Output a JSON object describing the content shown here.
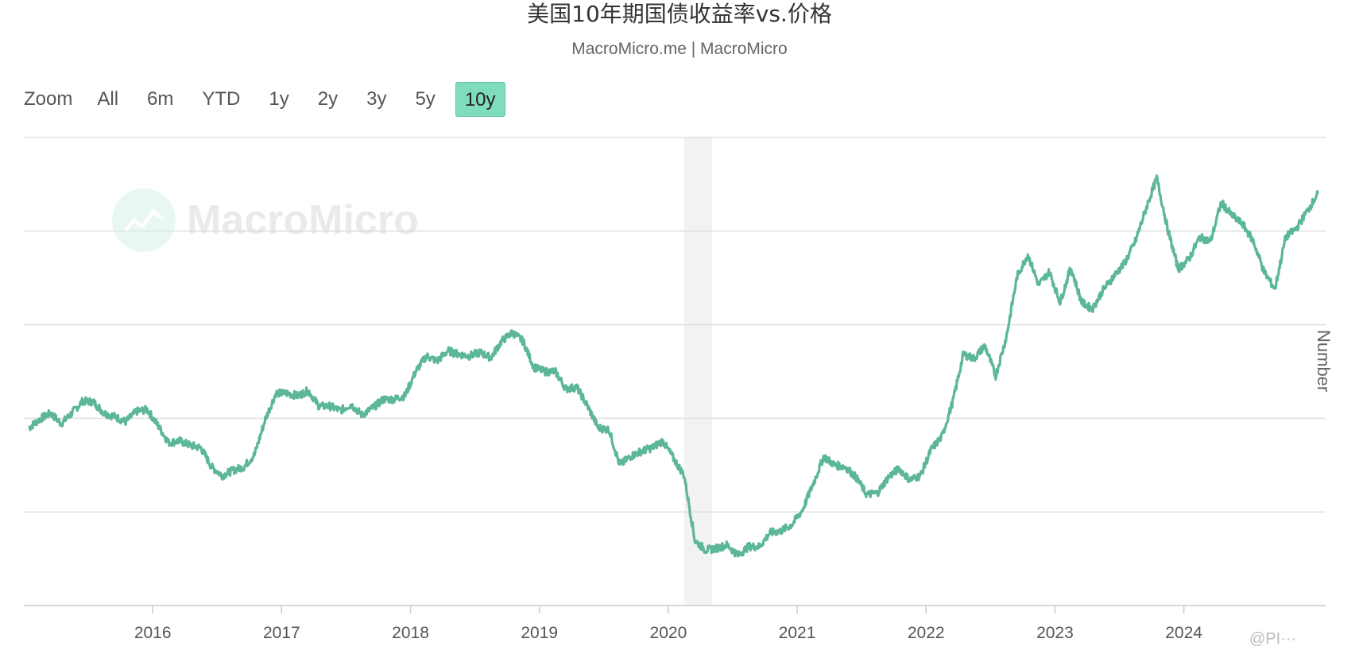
{
  "header": {
    "title": "美国10年期国债收益率vs.价格",
    "subtitle": "MacroMicro.me | MacroMicro"
  },
  "range_selector": {
    "label": "Zoom",
    "buttons": [
      {
        "label": "All",
        "active": false
      },
      {
        "label": "6m",
        "active": false
      },
      {
        "label": "YTD",
        "active": false
      },
      {
        "label": "1y",
        "active": false
      },
      {
        "label": "2y",
        "active": false
      },
      {
        "label": "3y",
        "active": false
      },
      {
        "label": "5y",
        "active": false
      },
      {
        "label": "10y",
        "active": true
      }
    ]
  },
  "watermark": {
    "text": "MacroMicro"
  },
  "credit": "@PI···",
  "colors": {
    "series": "#5bb796",
    "recession": "#f2f2f2",
    "grid": "#e0e0e0",
    "active_button": "#7fdcbe"
  },
  "chart_data": {
    "type": "line",
    "title": "美国10年期国债收益率vs.价格",
    "xlabel": "",
    "ylabel": "Number",
    "x_ticks": [
      "2016",
      "2017",
      "2018",
      "2019",
      "2020",
      "2021",
      "2022",
      "2023",
      "2024"
    ],
    "y_tick_labels_shown": false,
    "gridlines": "horizontal",
    "recession_band": {
      "start": "2020-02",
      "end": "2020-04"
    },
    "series": [
      {
        "name": "",
        "points": [
          [
            "2015-01",
            2.05
          ],
          [
            "2015-02",
            2.15
          ],
          [
            "2015-03",
            2.22
          ],
          [
            "2015-04",
            2.1
          ],
          [
            "2015-05",
            2.22
          ],
          [
            "2015-06",
            2.36
          ],
          [
            "2015-07",
            2.35
          ],
          [
            "2015-08",
            2.22
          ],
          [
            "2015-09",
            2.18
          ],
          [
            "2015-10",
            2.12
          ],
          [
            "2015-11",
            2.24
          ],
          [
            "2015-12",
            2.26
          ],
          [
            "2016-01",
            2.08
          ],
          [
            "2016-02",
            1.88
          ],
          [
            "2016-03",
            1.9
          ],
          [
            "2016-04",
            1.85
          ],
          [
            "2016-05",
            1.82
          ],
          [
            "2016-06",
            1.6
          ],
          [
            "2016-07",
            1.5
          ],
          [
            "2016-08",
            1.56
          ],
          [
            "2016-09",
            1.6
          ],
          [
            "2016-10",
            1.74
          ],
          [
            "2016-11",
            2.15
          ],
          [
            "2016-12",
            2.45
          ],
          [
            "2017-01",
            2.45
          ],
          [
            "2017-02",
            2.42
          ],
          [
            "2017-03",
            2.48
          ],
          [
            "2017-04",
            2.3
          ],
          [
            "2017-05",
            2.3
          ],
          [
            "2017-06",
            2.25
          ],
          [
            "2017-07",
            2.32
          ],
          [
            "2017-08",
            2.2
          ],
          [
            "2017-09",
            2.28
          ],
          [
            "2017-10",
            2.38
          ],
          [
            "2017-11",
            2.38
          ],
          [
            "2017-12",
            2.42
          ],
          [
            "2018-01",
            2.7
          ],
          [
            "2018-02",
            2.88
          ],
          [
            "2018-03",
            2.82
          ],
          [
            "2018-04",
            2.94
          ],
          [
            "2018-05",
            2.9
          ],
          [
            "2018-06",
            2.88
          ],
          [
            "2018-07",
            2.92
          ],
          [
            "2018-08",
            2.86
          ],
          [
            "2018-09",
            3.05
          ],
          [
            "2018-10",
            3.15
          ],
          [
            "2018-11",
            3.05
          ],
          [
            "2018-12",
            2.75
          ],
          [
            "2019-01",
            2.7
          ],
          [
            "2019-02",
            2.7
          ],
          [
            "2019-03",
            2.5
          ],
          [
            "2019-04",
            2.52
          ],
          [
            "2019-05",
            2.3
          ],
          [
            "2019-06",
            2.05
          ],
          [
            "2019-07",
            2.03
          ],
          [
            "2019-08",
            1.62
          ],
          [
            "2019-09",
            1.72
          ],
          [
            "2019-10",
            1.78
          ],
          [
            "2019-11",
            1.82
          ],
          [
            "2019-12",
            1.9
          ],
          [
            "2020-01",
            1.7
          ],
          [
            "2020-02",
            1.5
          ],
          [
            "2020-03",
            0.75
          ],
          [
            "2020-04",
            0.64
          ],
          [
            "2020-05",
            0.66
          ],
          [
            "2020-06",
            0.7
          ],
          [
            "2020-07",
            0.58
          ],
          [
            "2020-08",
            0.68
          ],
          [
            "2020-09",
            0.68
          ],
          [
            "2020-10",
            0.84
          ],
          [
            "2020-11",
            0.86
          ],
          [
            "2020-12",
            0.93
          ],
          [
            "2021-01",
            1.1
          ],
          [
            "2021-02",
            1.4
          ],
          [
            "2021-03",
            1.72
          ],
          [
            "2021-04",
            1.62
          ],
          [
            "2021-05",
            1.6
          ],
          [
            "2021-06",
            1.48
          ],
          [
            "2021-07",
            1.28
          ],
          [
            "2021-08",
            1.3
          ],
          [
            "2021-09",
            1.48
          ],
          [
            "2021-10",
            1.58
          ],
          [
            "2021-11",
            1.45
          ],
          [
            "2021-12",
            1.5
          ],
          [
            "2022-01",
            1.8
          ],
          [
            "2022-02",
            1.95
          ],
          [
            "2022-03",
            2.35
          ],
          [
            "2022-04",
            2.9
          ],
          [
            "2022-05",
            2.85
          ],
          [
            "2022-06",
            3.0
          ],
          [
            "2022-07",
            2.65
          ],
          [
            "2022-08",
            3.1
          ],
          [
            "2022-09",
            3.8
          ],
          [
            "2022-10",
            4.05
          ],
          [
            "2022-11",
            3.7
          ],
          [
            "2022-12",
            3.85
          ],
          [
            "2023-01",
            3.5
          ],
          [
            "2023-02",
            3.9
          ],
          [
            "2023-03",
            3.5
          ],
          [
            "2023-04",
            3.42
          ],
          [
            "2023-05",
            3.64
          ],
          [
            "2023-06",
            3.8
          ],
          [
            "2023-07",
            3.95
          ],
          [
            "2023-08",
            4.2
          ],
          [
            "2023-09",
            4.58
          ],
          [
            "2023-10",
            4.93
          ],
          [
            "2023-11",
            4.35
          ],
          [
            "2023-12",
            3.88
          ],
          [
            "2024-01",
            4.0
          ],
          [
            "2024-02",
            4.25
          ],
          [
            "2024-03",
            4.2
          ],
          [
            "2024-04",
            4.65
          ],
          [
            "2024-05",
            4.5
          ],
          [
            "2024-06",
            4.4
          ],
          [
            "2024-07",
            4.2
          ],
          [
            "2024-08",
            3.85
          ],
          [
            "2024-09",
            3.65
          ],
          [
            "2024-10",
            4.25
          ],
          [
            "2024-11",
            4.35
          ],
          [
            "2024-12",
            4.55
          ],
          [
            "2025-01",
            4.75
          ]
        ]
      }
    ]
  }
}
